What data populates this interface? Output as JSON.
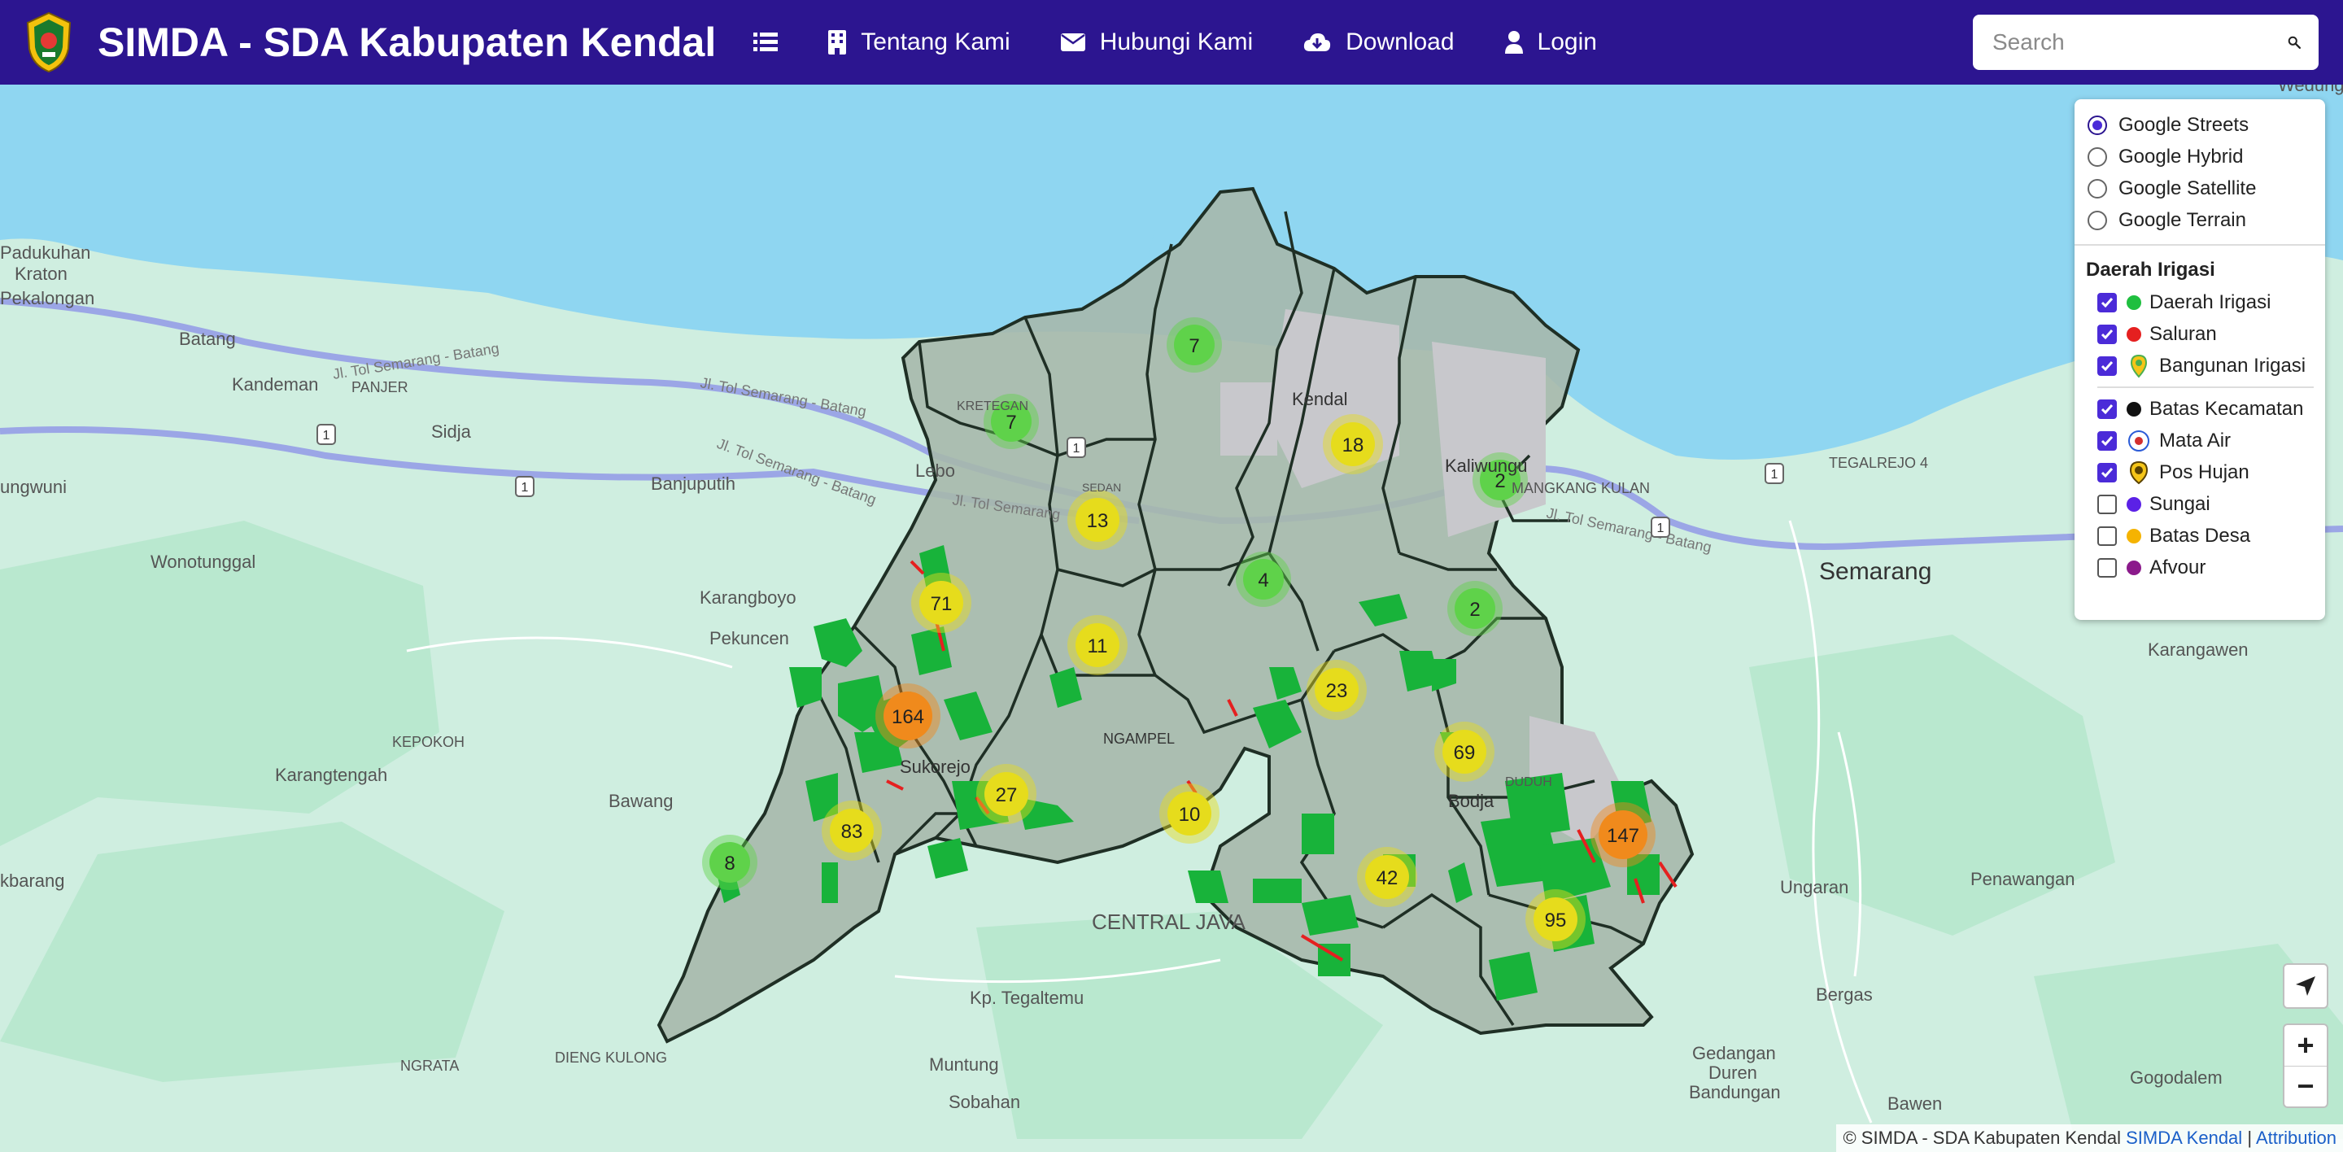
{
  "app": {
    "title": "SIMDA - SDA Kabupaten Kendal"
  },
  "nav": {
    "menu_icon": "list-icon",
    "items": [
      {
        "label": "Tentang Kami",
        "icon": "building-icon"
      },
      {
        "label": "Hubungi Kami",
        "icon": "envelope-icon"
      },
      {
        "label": "Download",
        "icon": "cloud-download-icon"
      },
      {
        "label": "Login",
        "icon": "user-icon"
      }
    ]
  },
  "search": {
    "placeholder": "Search",
    "icon": "search-icon"
  },
  "colors": {
    "navbar": "#2c1590",
    "sea": "#8fd6f1",
    "land": "#cfeee0",
    "district_fill": "#a8b9ad",
    "cluster_green": "#5fd24a",
    "cluster_yellow": "#e6dc1c",
    "cluster_orange": "#f08a1c",
    "irrigation_green": "#18b33a",
    "channel_red": "#e52020"
  },
  "basemaps": [
    {
      "label": "Google Streets",
      "selected": true
    },
    {
      "label": "Google Hybrid",
      "selected": false
    },
    {
      "label": "Google Satellite",
      "selected": false
    },
    {
      "label": "Google Terrain",
      "selected": false
    }
  ],
  "overlay_header": "Daerah Irigasi",
  "overlays_group1": [
    {
      "label": "Daerah Irigasi",
      "checked": true,
      "color": "#1fbf3f",
      "icon": "green-dot-icon"
    },
    {
      "label": "Saluran",
      "checked": true,
      "color": "#e52020",
      "icon": "red-dot-icon"
    },
    {
      "label": "Bangunan Irigasi",
      "checked": true,
      "color": "#4caf50",
      "icon": "map-pin-icon"
    }
  ],
  "overlays_group2": [
    {
      "label": "Batas Kecamatan",
      "checked": true,
      "color": "#111111",
      "icon": "black-dot-icon"
    },
    {
      "label": "Mata Air",
      "checked": true,
      "color": "#d32f2f",
      "icon": "spring-icon"
    },
    {
      "label": "Pos Hujan",
      "checked": true,
      "color": "#f5c518",
      "icon": "rain-post-icon"
    },
    {
      "label": "Sungai",
      "checked": false,
      "color": "#5b21e6",
      "icon": "purple-dot-icon"
    },
    {
      "label": "Batas Desa",
      "checked": false,
      "color": "#f5b301",
      "icon": "orange-dot-icon"
    },
    {
      "label": "Afvour",
      "checked": false,
      "color": "#8b1a8b",
      "icon": "violet-dot-icon"
    }
  ],
  "map_labels": {
    "padukuhan_kraton": [
      "Padukuhan",
      "Kraton"
    ],
    "pekalongan": "Pekalongan",
    "batang": "Batang",
    "kandeman": "Kandeman",
    "panjer": "PANJER",
    "sidja": "Sidja",
    "banjuputih": "Banjuputih",
    "lebo": "Lebo",
    "ungwuni": "ungwuni",
    "wonotunggal": "Wonotunggal",
    "karangboyo": "Karangboyo",
    "pekuncen": "Pekuncen",
    "kepokoh": "KEPOKOH",
    "karangtengah": "Karangtengah",
    "bawang": "Bawang",
    "kbarang": "kbarang",
    "sukorejo": "Sukorejo",
    "ngampel": "NGAMPEL",
    "central_java": "CENTRAL JAVA",
    "kp_tegaltemu": "Kp. Tegaltemu",
    "ngrata": "NGRATA",
    "dieng_kulong": "DIENG KULONG",
    "muntung": "Muntung",
    "sobahan": "Sobahan",
    "kendal": "Kendal",
    "kaliwungu": "Kaliwungu",
    "mangkang_kulon": "MANGKANG KULAN",
    "kretegan": "KRETEGAN",
    "sedan": "SEDAN",
    "tegalrejo": "TEGALREJO 4",
    "semarang": "Semarang",
    "karangawen": "Karangawen",
    "ungaran": "Ungaran",
    "penawangan": "Penawangan",
    "bergas": "Bergas",
    "gedangan": [
      "Gedangan",
      "Duren",
      "Bandungan"
    ],
    "gogodalem": "Gogodalem",
    "bawen": "Bawen",
    "wedung": "Wedung",
    "bodja": "Bodja",
    "duduh": "DUDUH",
    "toll_1": "Jl. Tol Semarang - Batang",
    "toll_2": "Jl. Tol Semarang - Batang",
    "toll_3": "Jl. Tol Semarang - Batang",
    "toll_4": "Jl. Tol Semarang",
    "toll_5": "Jl. Tol Semarang - Batang",
    "route_1": "1"
  },
  "clusters": [
    {
      "count": "7",
      "level": "green"
    },
    {
      "count": "7",
      "level": "green"
    },
    {
      "count": "18",
      "level": "yellow"
    },
    {
      "count": "2",
      "level": "green"
    },
    {
      "count": "13",
      "level": "yellow"
    },
    {
      "count": "4",
      "level": "green"
    },
    {
      "count": "2",
      "level": "green"
    },
    {
      "count": "71",
      "level": "yellow"
    },
    {
      "count": "11",
      "level": "yellow"
    },
    {
      "count": "23",
      "level": "yellow"
    },
    {
      "count": "164",
      "level": "orange"
    },
    {
      "count": "69",
      "level": "yellow"
    },
    {
      "count": "27",
      "level": "yellow"
    },
    {
      "count": "10",
      "level": "yellow"
    },
    {
      "count": "83",
      "level": "yellow"
    },
    {
      "count": "147",
      "level": "orange"
    },
    {
      "count": "8",
      "level": "green"
    },
    {
      "count": "42",
      "level": "yellow"
    },
    {
      "count": "95",
      "level": "yellow"
    }
  ],
  "controls": {
    "locate_icon": "location-arrow-icon",
    "zoom_in": "+",
    "zoom_out": "−"
  },
  "attribution": {
    "prefix": "© SIMDA - SDA Kabupaten Kendal",
    "link": "SIMDA Kendal",
    "separator": "|",
    "attribution_link": "Attribution"
  }
}
